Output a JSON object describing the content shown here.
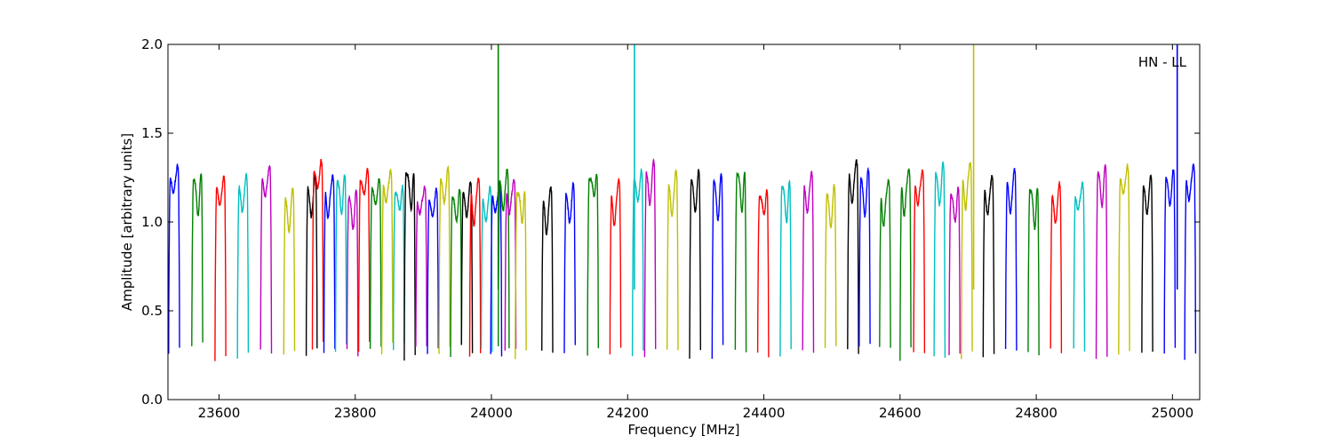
{
  "chart_data": {
    "type": "line",
    "title": "",
    "xlabel": "Frequency [MHz]",
    "ylabel": "Amplitude [arbitrary units]",
    "xlim": [
      23525,
      25040
    ],
    "ylim": [
      0.0,
      2.0
    ],
    "xticks": [
      23600,
      23800,
      24000,
      24200,
      24400,
      24600,
      24800,
      25000
    ],
    "xtick_labels": [
      "23600",
      "23800",
      "24000",
      "24200",
      "24400",
      "24600",
      "24800",
      "25000"
    ],
    "yticks": [
      0.0,
      0.5,
      1.0,
      1.5,
      2.0
    ],
    "ytick_labels": [
      "0.0",
      "0.5",
      "1.0",
      "1.5",
      "2.0"
    ],
    "grid": false,
    "annotation": "HN - LL",
    "color_cycle": [
      "#0000ff",
      "#008000",
      "#ff0000",
      "#00bfbf",
      "#bf00bf",
      "#bfbf00",
      "#000000"
    ],
    "channel_width_mhz": 16,
    "channels": [
      {
        "x0": 23526,
        "color": "#0000ff",
        "peak": 1.32
      },
      {
        "x0": 23560,
        "color": "#008000",
        "peak": 1.3
      },
      {
        "x0": 23594,
        "color": "#ff0000",
        "peak": 1.26
      },
      {
        "x0": 23627,
        "color": "#00bfbf",
        "peak": 1.27
      },
      {
        "x0": 23661,
        "color": "#bf00bf",
        "peak": 1.32
      },
      {
        "x0": 23695,
        "color": "#bfbf00",
        "peak": 1.2
      },
      {
        "x0": 23728,
        "color": "#000000",
        "peak": 1.26
      },
      {
        "x0": 23737,
        "color": "#ff0000",
        "peak": 1.35
      },
      {
        "x0": 23754,
        "color": "#0000ff",
        "peak": 1.26
      },
      {
        "x0": 23771,
        "color": "#00bfbf",
        "peak": 1.29
      },
      {
        "x0": 23788,
        "color": "#bf00bf",
        "peak": 1.2
      },
      {
        "x0": 23805,
        "color": "#ff0000",
        "peak": 1.3
      },
      {
        "x0": 23822,
        "color": "#008000",
        "peak": 1.25
      },
      {
        "x0": 23839,
        "color": "#bfbf00",
        "peak": 1.29
      },
      {
        "x0": 23856,
        "color": "#00bfbf",
        "peak": 1.22
      },
      {
        "x0": 23872,
        "color": "#000000",
        "peak": 1.33
      },
      {
        "x0": 23889,
        "color": "#bf00bf",
        "peak": 1.2
      },
      {
        "x0": 23906,
        "color": "#0000ff",
        "peak": 1.19
      },
      {
        "x0": 23923,
        "color": "#bfbf00",
        "peak": 1.31
      },
      {
        "x0": 23940,
        "color": "#008000",
        "peak": 1.2
      },
      {
        "x0": 23956,
        "color": "#000000",
        "peak": 1.23
      },
      {
        "x0": 23968,
        "color": "#ff0000",
        "peak": 1.25
      },
      {
        "x0": 23985,
        "color": "#00bfbf",
        "peak": 1.2
      },
      {
        "x0": 23999,
        "color": "#0000ff",
        "peak": 1.22
      },
      {
        "x0": 24010,
        "color": "#008000",
        "peak": 1.3
      },
      {
        "x0": 24020,
        "color": "#bf00bf",
        "peak": 1.24
      },
      {
        "x0": 24035,
        "color": "#bfbf00",
        "peak": 1.22
      },
      {
        "x0": 24074,
        "color": "#000000",
        "peak": 1.2
      },
      {
        "x0": 24107,
        "color": "#0000ff",
        "peak": 1.22
      },
      {
        "x0": 24141,
        "color": "#008000",
        "peak": 1.3
      },
      {
        "x0": 24174,
        "color": "#ff0000",
        "peak": 1.24
      },
      {
        "x0": 24207,
        "color": "#00bfbf",
        "peak": 1.3
      },
      {
        "x0": 24225,
        "color": "#bf00bf",
        "peak": 1.35
      },
      {
        "x0": 24258,
        "color": "#bfbf00",
        "peak": 1.29
      },
      {
        "x0": 24291,
        "color": "#000000",
        "peak": 1.3
      },
      {
        "x0": 24324,
        "color": "#0000ff",
        "peak": 1.29
      },
      {
        "x0": 24358,
        "color": "#008000",
        "peak": 1.33
      },
      {
        "x0": 24391,
        "color": "#ff0000",
        "peak": 1.2
      },
      {
        "x0": 24424,
        "color": "#00bfbf",
        "peak": 1.26
      },
      {
        "x0": 24457,
        "color": "#bf00bf",
        "peak": 1.28
      },
      {
        "x0": 24490,
        "color": "#bfbf00",
        "peak": 1.22
      },
      {
        "x0": 24523,
        "color": "#000000",
        "peak": 1.35
      },
      {
        "x0": 24540,
        "color": "#0000ff",
        "peak": 1.31
      },
      {
        "x0": 24570,
        "color": "#008000",
        "peak": 1.24
      },
      {
        "x0": 24600,
        "color": "#008000",
        "peak": 1.3
      },
      {
        "x0": 24620,
        "color": "#ff0000",
        "peak": 1.29
      },
      {
        "x0": 24650,
        "color": "#00bfbf",
        "peak": 1.34
      },
      {
        "x0": 24672,
        "color": "#bf00bf",
        "peak": 1.21
      },
      {
        "x0": 24690,
        "color": "#bfbf00",
        "peak": 1.34
      },
      {
        "x0": 24722,
        "color": "#000000",
        "peak": 1.26
      },
      {
        "x0": 24755,
        "color": "#0000ff",
        "peak": 1.3
      },
      {
        "x0": 24788,
        "color": "#008000",
        "peak": 1.24
      },
      {
        "x0": 24821,
        "color": "#ff0000",
        "peak": 1.22
      },
      {
        "x0": 24855,
        "color": "#00bfbf",
        "peak": 1.22
      },
      {
        "x0": 24888,
        "color": "#bf00bf",
        "peak": 1.34
      },
      {
        "x0": 24921,
        "color": "#bfbf00",
        "peak": 1.32
      },
      {
        "x0": 24955,
        "color": "#000000",
        "peak": 1.27
      },
      {
        "x0": 24988,
        "color": "#0000ff",
        "peak": 1.31
      },
      {
        "x0": 25018,
        "color": "#0000ff",
        "peak": 1.32
      }
    ],
    "spikes": [
      {
        "x": 24010,
        "color": "#008000",
        "y": 2.0
      },
      {
        "x": 24210,
        "color": "#00bfbf",
        "y": 2.0
      },
      {
        "x": 24708,
        "color": "#bfbf00",
        "y": 2.0
      },
      {
        "x": 25007,
        "color": "#0000ff",
        "y": 2.0
      }
    ]
  }
}
